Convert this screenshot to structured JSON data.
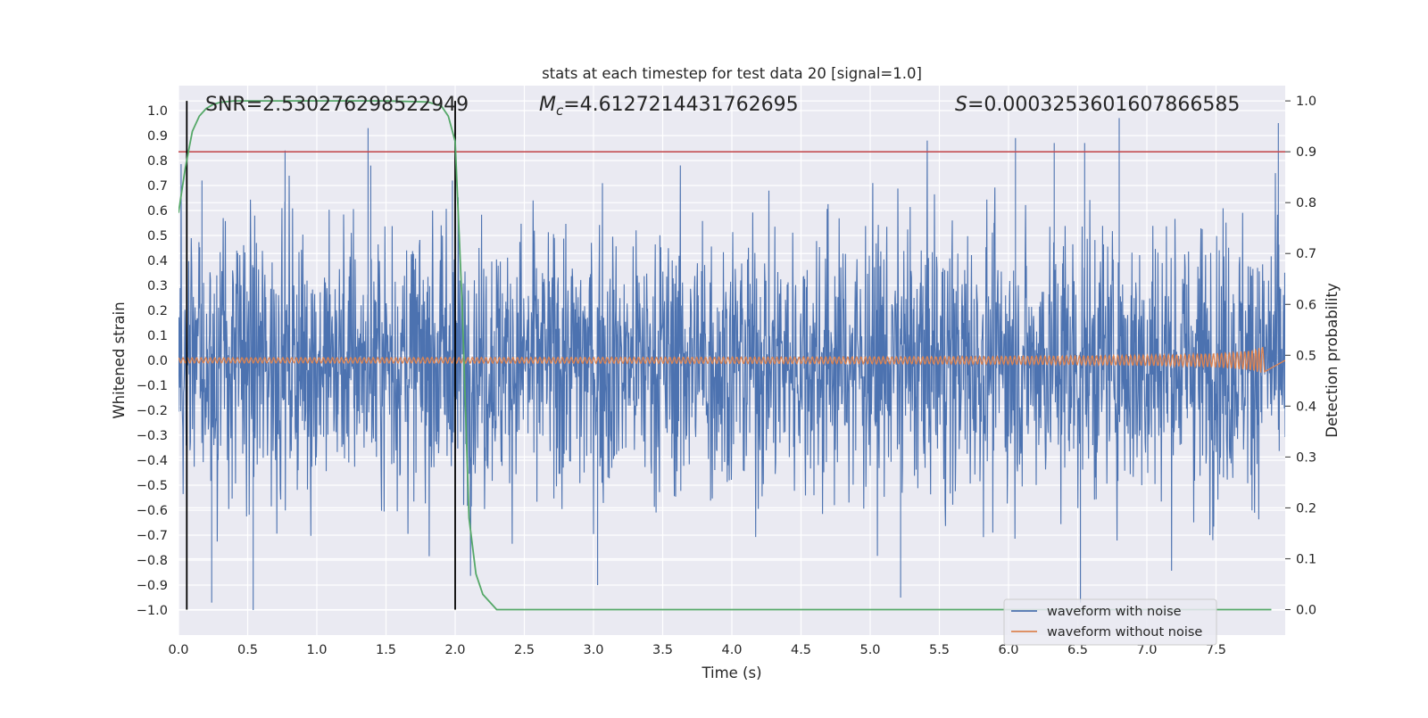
{
  "chart_data": {
    "type": "line",
    "title": "stats at each timestep for test data 20 [signal=1.0]",
    "xlabel": "Time (s)",
    "ylabel": "Whitened strain",
    "ylabel_right": "Detection probability",
    "xlim": [
      0.0,
      8.0
    ],
    "ylim": [
      -1.1,
      1.1
    ],
    "ylim_right": [
      -0.05,
      1.03
    ],
    "x_ticks": [
      "0.0",
      "0.5",
      "1.0",
      "1.5",
      "2.0",
      "2.5",
      "3.0",
      "3.5",
      "4.0",
      "4.5",
      "5.0",
      "5.5",
      "6.0",
      "6.5",
      "7.0",
      "7.5"
    ],
    "y_ticks": [
      "1.0",
      "0.9",
      "0.8",
      "0.7",
      "0.6",
      "0.5",
      "0.4",
      "0.3",
      "0.2",
      "0.1",
      "0.0",
      "−0.1",
      "−0.2",
      "−0.3",
      "−0.4",
      "−0.5",
      "−0.6",
      "−0.7",
      "−0.8",
      "−0.9",
      "−1.0"
    ],
    "y_ticks_right": [
      "1.0",
      "0.9",
      "0.8",
      "0.7",
      "0.6",
      "0.5",
      "0.4",
      "0.3",
      "0.2",
      "0.1",
      "0.0"
    ],
    "annotations": {
      "snr": "SNR=2.530276298522949",
      "mc_symbol": "M",
      "mc_sub": "c",
      "mc_value": "=4.6127214431762695",
      "s_symbol": "S",
      "s_value": "=0.0003253601607866585"
    },
    "threshold_right": 0.9,
    "vlines_x": [
      0.06,
      2.0
    ],
    "series": [
      {
        "name": "waveform with noise",
        "color": "#4c72b0",
        "peaks": [
          {
            "x": 0.17,
            "y": 0.72
          },
          {
            "x": 0.24,
            "y": -0.97
          },
          {
            "x": 0.54,
            "y": -1.0
          },
          {
            "x": 0.77,
            "y": 0.84
          },
          {
            "x": 1.37,
            "y": 0.93
          },
          {
            "x": 1.39,
            "y": 0.78
          },
          {
            "x": 1.98,
            "y": 0.72
          },
          {
            "x": 3.03,
            "y": -0.9
          },
          {
            "x": 5.22,
            "y": -0.95
          },
          {
            "x": 6.05,
            "y": 0.89
          },
          {
            "x": 6.33,
            "y": 0.87
          },
          {
            "x": 6.55,
            "y": 0.87
          },
          {
            "x": 6.8,
            "y": 0.97
          },
          {
            "x": 6.52,
            "y": -0.97
          },
          {
            "x": 7.95,
            "y": 0.95
          }
        ]
      },
      {
        "name": "waveform without noise",
        "color": "#dd8452",
        "description_values": {
          "amplitude_start": 0.005,
          "amplitude_end": 0.06,
          "merger_time": 7.85
        }
      },
      {
        "name": "detection probability",
        "color": "#55a868",
        "axis": "right",
        "x": [
          0.0,
          0.05,
          0.1,
          0.15,
          0.2,
          0.25,
          0.3,
          0.4,
          0.6,
          1.0,
          1.5,
          1.8,
          1.9,
          1.95,
          2.0,
          2.05,
          2.1,
          2.15,
          2.2,
          2.3,
          5.0,
          7.9
        ],
        "y": [
          0.78,
          0.87,
          0.94,
          0.97,
          0.985,
          0.993,
          0.997,
          1.0,
          1.0,
          1.0,
          1.0,
          0.998,
          0.99,
          0.97,
          0.92,
          0.6,
          0.18,
          0.07,
          0.03,
          0.0,
          0.0,
          0.0
        ]
      }
    ],
    "legend": {
      "position": "lower-right",
      "entries": [
        {
          "label": "waveform with noise",
          "color": "#4c72b0"
        },
        {
          "label": "waveform without noise",
          "color": "#dd8452"
        }
      ]
    },
    "colors": {
      "background": "#eaeaf2",
      "grid": "#ffffff",
      "threshold": "#c44e52",
      "vline": "#000000"
    }
  }
}
